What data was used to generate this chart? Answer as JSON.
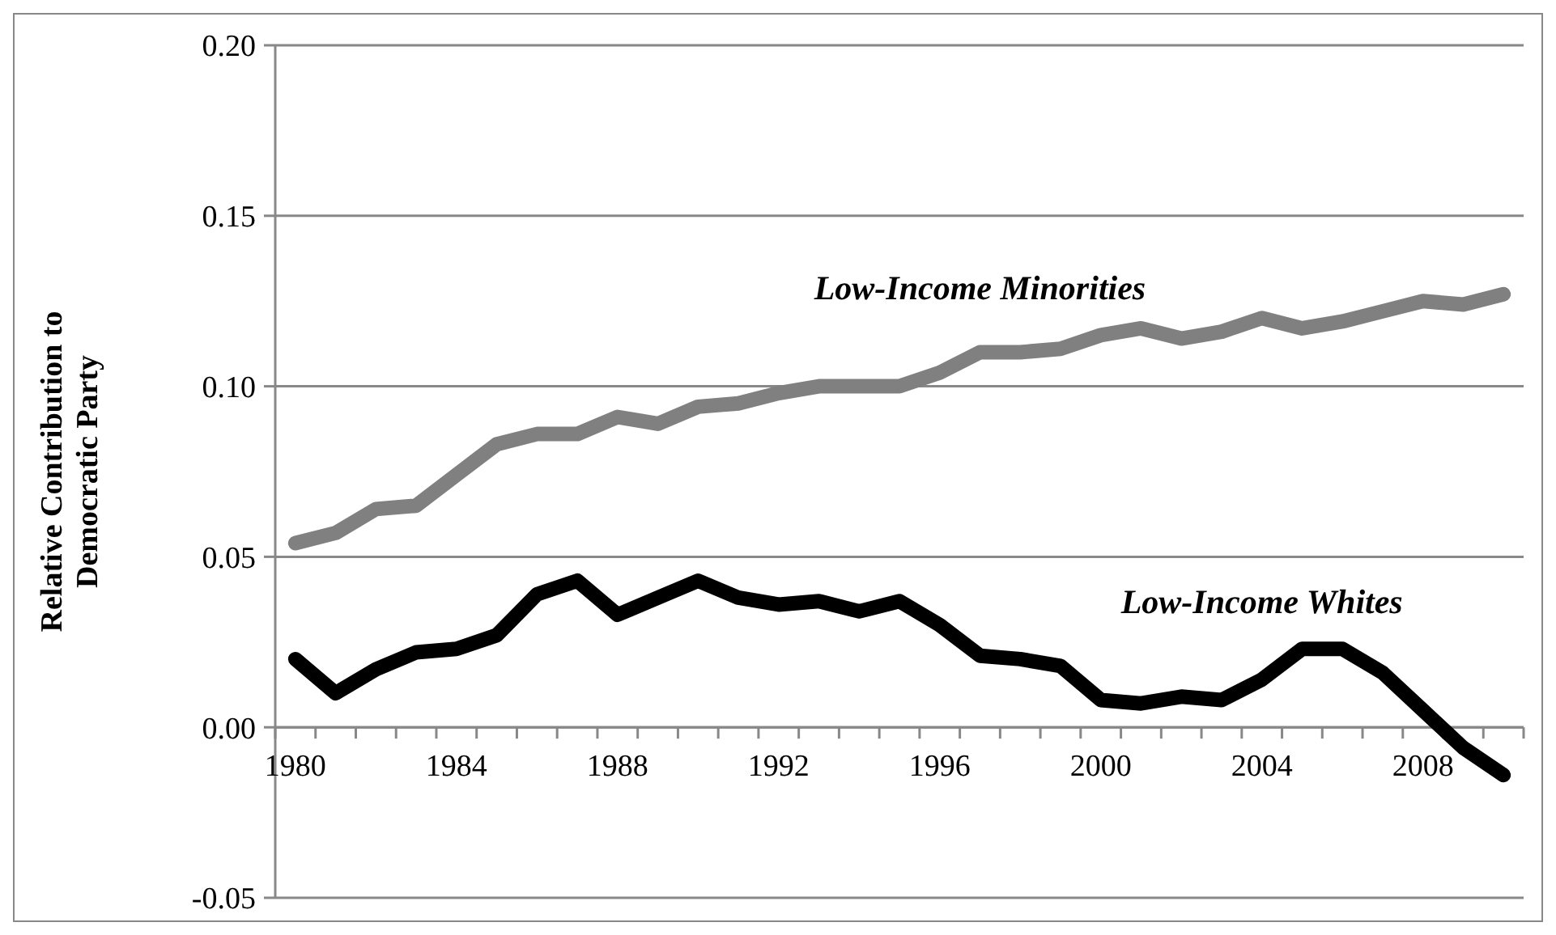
{
  "chart_data": {
    "type": "line",
    "ylabel": "Relative Contribution to Democratic Party",
    "categories": [
      "1980",
      null,
      null,
      null,
      "1984",
      null,
      null,
      null,
      "1988",
      null,
      null,
      null,
      "1992",
      null,
      null,
      null,
      "1996",
      null,
      null,
      null,
      "2000",
      null,
      null,
      null,
      "2004",
      null,
      null,
      null,
      "2008",
      null,
      null
    ],
    "series": [
      {
        "name": "Low-Income Minorities",
        "color": "#808080",
        "values": [
          0.054,
          0.057,
          0.064,
          0.065,
          0.074,
          0.083,
          0.086,
          0.086,
          0.091,
          0.089,
          0.094,
          0.095,
          0.098,
          0.1,
          0.1,
          0.1,
          0.104,
          0.11,
          0.11,
          0.111,
          0.115,
          0.117,
          0.114,
          0.116,
          0.12,
          0.117,
          0.119,
          0.122,
          0.125,
          0.124,
          0.127
        ]
      },
      {
        "name": "Low-Income Whites",
        "color": "#000000",
        "values": [
          0.02,
          0.01,
          0.017,
          0.022,
          0.023,
          0.027,
          0.039,
          0.043,
          0.033,
          0.038,
          0.043,
          0.038,
          0.036,
          0.037,
          0.034,
          0.037,
          0.03,
          0.021,
          0.02,
          0.018,
          0.008,
          0.007,
          0.009,
          0.008,
          0.014,
          0.023,
          0.023,
          0.016,
          0.005,
          -0.006,
          -0.014
        ]
      }
    ],
    "ylim": [
      -0.05,
      0.2
    ],
    "yticks": [
      {
        "value": -0.05,
        "label": "-0.05"
      },
      {
        "value": 0,
        "label": "0.00"
      },
      {
        "value": 0.05,
        "label": "0.05"
      },
      {
        "value": 0.1,
        "label": "0.10"
      },
      {
        "value": 0.15,
        "label": "0.15"
      },
      {
        "value": 0.2,
        "label": "0.20"
      }
    ],
    "grid": "y",
    "marker": "none",
    "line_style": "solid"
  }
}
